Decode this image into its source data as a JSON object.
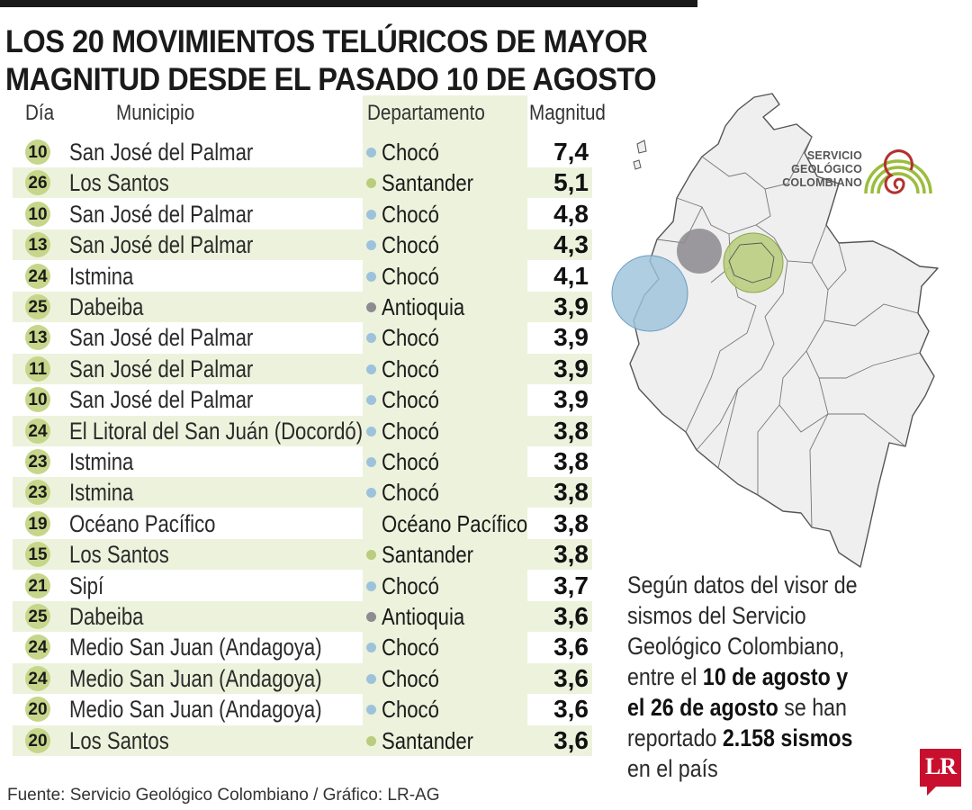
{
  "header": {
    "title_line1": "LOS 20 MOVIMIENTOS TELÚRICOS DE MAYOR",
    "title_line2": "MAGNITUD DESDE EL PASADO 10 DE AGOSTO"
  },
  "colors": {
    "Chocó": "#9dc3dc",
    "Santander": "#b9cd7d",
    "Antioquia": "#8e8c91",
    "Océano Pacífico": "",
    "day_badge": "#c6d68a",
    "stripe": "#edf2dc"
  },
  "chart_data": {
    "type": "table",
    "columns": [
      "Día",
      "Municipio",
      "Departamento",
      "Magnitud"
    ],
    "rows": [
      {
        "dia": "10",
        "municipio": "San José del Palmar",
        "departamento": "Chocó",
        "magnitud": "7,4"
      },
      {
        "dia": "26",
        "municipio": "Los Santos",
        "departamento": "Santander",
        "magnitud": "5,1"
      },
      {
        "dia": "10",
        "municipio": "San José del Palmar",
        "departamento": "Chocó",
        "magnitud": "4,8"
      },
      {
        "dia": "13",
        "municipio": "San José del Palmar",
        "departamento": "Chocó",
        "magnitud": "4,3"
      },
      {
        "dia": "24",
        "municipio": "Istmina",
        "departamento": "Chocó",
        "magnitud": "4,1"
      },
      {
        "dia": "25",
        "municipio": "Dabeiba",
        "departamento": "Antioquia",
        "magnitud": "3,9"
      },
      {
        "dia": "13",
        "municipio": "San José del Palmar",
        "departamento": "Chocó",
        "magnitud": "3,9"
      },
      {
        "dia": "11",
        "municipio": "San José del Palmar",
        "departamento": "Chocó",
        "magnitud": "3,9"
      },
      {
        "dia": "10",
        "municipio": "San José del Palmar",
        "departamento": "Chocó",
        "magnitud": "3,9"
      },
      {
        "dia": "24",
        "municipio": "El Litoral del San Juán (Docordó)",
        "departamento": "Chocó",
        "magnitud": "3,8"
      },
      {
        "dia": "23",
        "municipio": "Istmina",
        "departamento": "Chocó",
        "magnitud": "3,8"
      },
      {
        "dia": "23",
        "municipio": "Istmina",
        "departamento": "Chocó",
        "magnitud": "3,8"
      },
      {
        "dia": "19",
        "municipio": "Océano Pacífico",
        "departamento": "Océano Pacífico",
        "magnitud": "3,8"
      },
      {
        "dia": "15",
        "municipio": "Los Santos",
        "departamento": "Santander",
        "magnitud": "3,8"
      },
      {
        "dia": "21",
        "municipio": "Sipí",
        "departamento": "Chocó",
        "magnitud": "3,7"
      },
      {
        "dia": "25",
        "municipio": "Dabeiba",
        "departamento": "Antioquia",
        "magnitud": "3,6"
      },
      {
        "dia": "24",
        "municipio": "Medio San Juan (Andagoya)",
        "departamento": "Chocó",
        "magnitud": "3,6"
      },
      {
        "dia": "24",
        "municipio": "Medio San Juan (Andagoya)",
        "departamento": "Chocó",
        "magnitud": "3,6"
      },
      {
        "dia": "20",
        "municipio": "Medio San Juan (Andagoya)",
        "departamento": "Chocó",
        "magnitud": "3,6"
      },
      {
        "dia": "20",
        "municipio": "Los Santos",
        "departamento": "Santander",
        "magnitud": "3,6"
      }
    ]
  },
  "note": {
    "part1": "Según datos del visor de sismos del Servicio Geológico Colombiano, entre el ",
    "bold1": "10 de agosto y el 26 de agosto",
    "part2": " se han reportado ",
    "bold2": "2.158 sismos",
    "part3": " en el país"
  },
  "logo": {
    "line1": "SERVICIO",
    "line2": "GEOLÓGICO",
    "line3": "COLOMBIANO"
  },
  "source": "Fuente: Servicio Geológico Colombiano / Gráfico: LR-AG",
  "brand": "LR"
}
